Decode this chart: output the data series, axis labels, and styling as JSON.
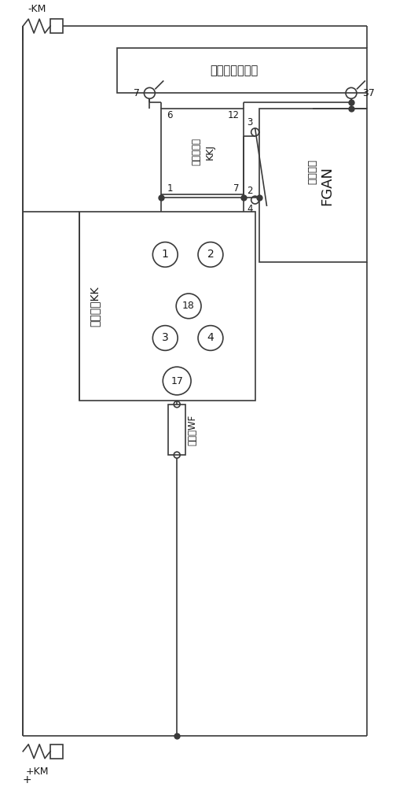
{
  "bg_color": "#ffffff",
  "line_color": "#3a3a3a",
  "text_color": "#1a1a1a",
  "figsize": [
    5.18,
    10.0
  ],
  "dpi": 100,
  "top_box_label": "故障信号复归板",
  "top_box_pin_l": "7",
  "top_box_pin_r": "37",
  "kkj_label_line1": "中间继电器",
  "kkj_label_line2": "KKJ",
  "kkj_pin_tl": "6",
  "kkj_pin_tr": "12",
  "kkj_pin_bl": "1",
  "kkj_pin_br": "7",
  "fgan_label_line1": "复归接络",
  "fgan_label_line2": "FGAN",
  "fgan_pin_t": "3",
  "fgan_pin_b": "2",
  "fgan_pin_b2": "4",
  "kk_label": "控制手把KK",
  "kk_pin_1": "1",
  "kk_pin_2": "2",
  "kk_pin_3": "3",
  "kk_pin_4": "4",
  "kk_pin_17": "17",
  "kk_pin_18": "18",
  "fuse_label": "五路板WF",
  "top_power": "-KM",
  "bot_power": "+KM"
}
